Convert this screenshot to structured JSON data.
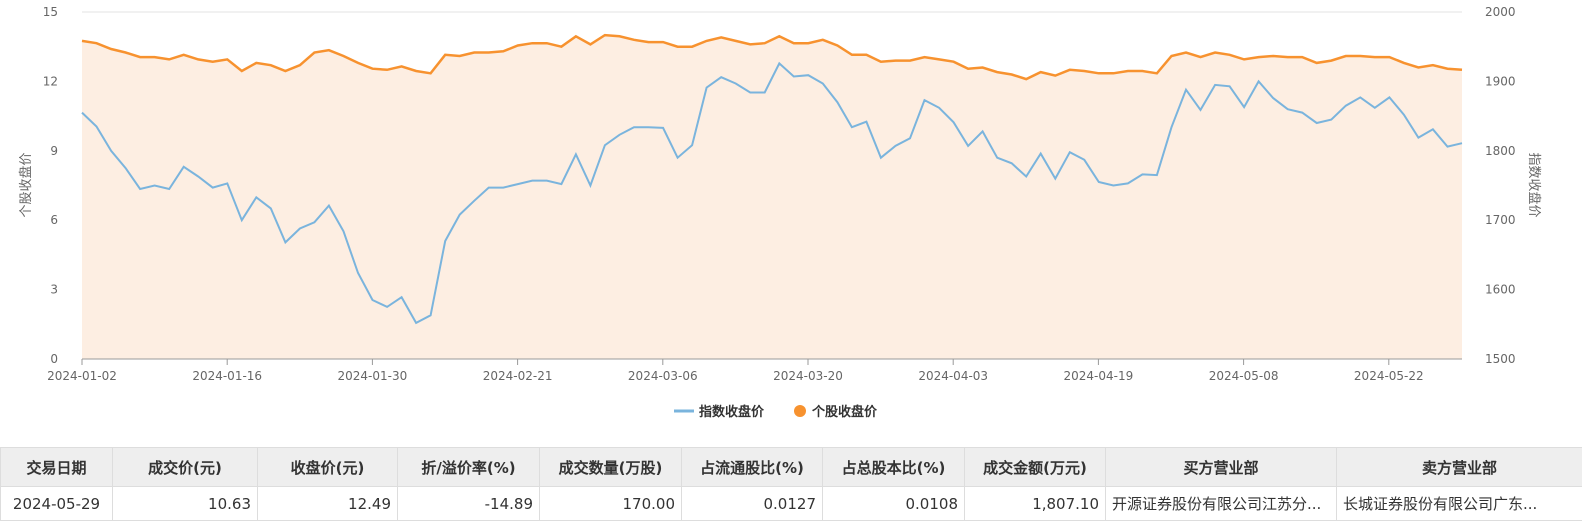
{
  "chart_data": {
    "type": "line",
    "x_labels": [
      "2024-01-02",
      "2024-01-16",
      "2024-01-30",
      "2024-02-21",
      "2024-03-06",
      "2024-03-20",
      "2024-04-03",
      "2024-04-19",
      "2024-05-08",
      "2024-05-22"
    ],
    "y_left": {
      "label": "个股收盘价",
      "ticks": [
        "0",
        "3",
        "6",
        "9",
        "12",
        "15"
      ],
      "range": [
        0,
        15
      ]
    },
    "y_right": {
      "label": "指数收盘价",
      "ticks": [
        "1500",
        "1600",
        "1700",
        "1800",
        "1900",
        "2000"
      ],
      "range": [
        1500,
        2000
      ]
    },
    "series": [
      {
        "name": "指数收盘价",
        "axis": "right",
        "color": "#7ab4dd",
        "values": [
          1855,
          1835,
          1800,
          1775,
          1745,
          1750,
          1745,
          1777,
          1763,
          1747,
          1753,
          1700,
          1733,
          1717,
          1668,
          1688,
          1697,
          1721,
          1684,
          1624,
          1585,
          1575,
          1589,
          1552,
          1563,
          1670,
          1708,
          1728,
          1747,
          1747,
          1752,
          1757,
          1757,
          1752,
          1795,
          1750,
          1808,
          1823,
          1834,
          1834,
          1833,
          1790,
          1808,
          1891,
          1906,
          1897,
          1884,
          1884,
          1926,
          1907,
          1909,
          1897,
          1870,
          1834,
          1842,
          1790,
          1807,
          1818,
          1873,
          1862,
          1841,
          1807,
          1828,
          1790,
          1782,
          1763,
          1796,
          1760,
          1798,
          1787,
          1755,
          1750,
          1753,
          1766,
          1765,
          1834,
          1888,
          1859,
          1895,
          1893,
          1863,
          1900,
          1876,
          1860,
          1855,
          1840,
          1845,
          1865,
          1877,
          1862,
          1877,
          1852,
          1819,
          1831,
          1806,
          1811
        ]
      },
      {
        "name": "个股收盘价",
        "axis": "left",
        "color": "#f7922f",
        "values": [
          13.75,
          13.65,
          13.4,
          13.25,
          13.05,
          13.05,
          12.95,
          13.15,
          12.95,
          12.85,
          12.95,
          12.45,
          12.8,
          12.7,
          12.45,
          12.7,
          13.25,
          13.35,
          13.1,
          12.8,
          12.55,
          12.5,
          12.65,
          12.45,
          12.35,
          13.15,
          13.1,
          13.25,
          13.25,
          13.3,
          13.55,
          13.65,
          13.65,
          13.5,
          13.95,
          13.6,
          14.0,
          13.95,
          13.8,
          13.7,
          13.7,
          13.5,
          13.5,
          13.75,
          13.9,
          13.75,
          13.6,
          13.65,
          13.95,
          13.65,
          13.65,
          13.8,
          13.55,
          13.15,
          13.15,
          12.85,
          12.9,
          12.9,
          13.05,
          12.95,
          12.85,
          12.55,
          12.6,
          12.4,
          12.3,
          12.1,
          12.4,
          12.25,
          12.5,
          12.45,
          12.35,
          12.35,
          12.45,
          12.45,
          12.35,
          13.1,
          13.25,
          13.05,
          13.25,
          13.15,
          12.95,
          13.05,
          13.1,
          13.05,
          13.05,
          12.8,
          12.9,
          13.1,
          13.1,
          13.05,
          13.05,
          12.8,
          12.6,
          12.7,
          12.55,
          12.5
        ]
      }
    ],
    "grid": true,
    "legend_position": "bottom-center"
  },
  "table": {
    "headers": [
      "交易日期",
      "成交价(元)",
      "收盘价(元)",
      "折/溢价率(%)",
      "成交数量(万股)",
      "占流通股比(%)",
      "占总股本比(%)",
      "成交金额(万元)",
      "买方营业部",
      "卖方营业部"
    ],
    "rows": [
      [
        "2024-05-29",
        "10.63",
        "12.49",
        "-14.89",
        "170.00",
        "0.0127",
        "0.0108",
        "1,807.10",
        "开源证券股份有限公司江苏分...",
        "长城证券股份有限公司广东..."
      ]
    ]
  }
}
